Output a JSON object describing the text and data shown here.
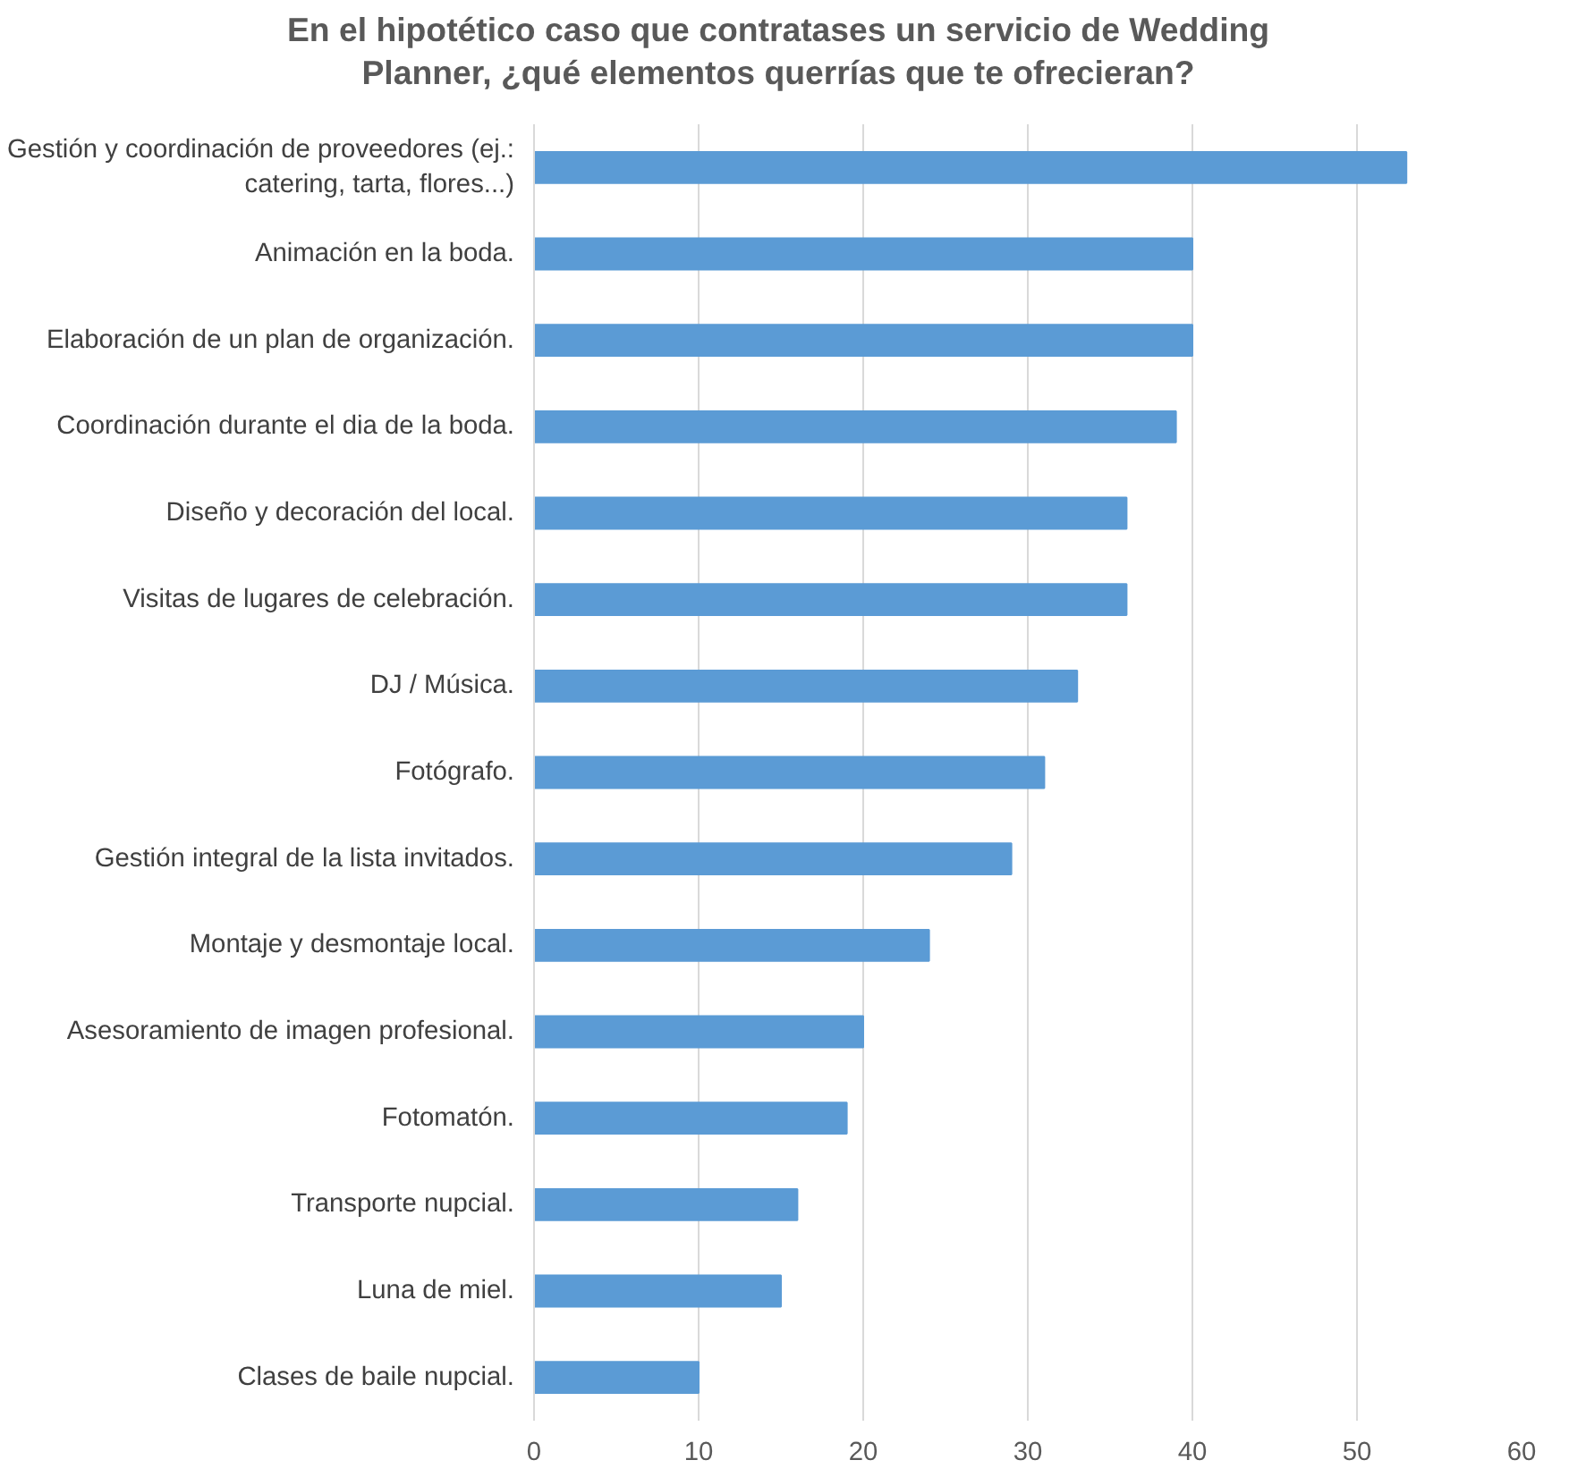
{
  "chart_data": {
    "type": "bar",
    "orientation": "horizontal",
    "title": "En el hipotético caso que contratases un servicio de Wedding Planner, ¿qué elementos querrías que te ofrecieran?",
    "categories": [
      "Gestión y coordinación de proveedores (ej.: catering, tarta, flores...)",
      "Animación en la boda.",
      "Elaboración de un plan de organización.",
      "Coordinación durante el dia de la boda.",
      "Diseño y decoración del local.",
      "Visitas de lugares de celebración.",
      "DJ / Música.",
      "Fotógrafo.",
      "Gestión integral de la lista invitados.",
      "Montaje y desmontaje local.",
      "Asesoramiento de imagen profesional.",
      "Fotomatón.",
      "Transporte nupcial.",
      "Luna de miel.",
      "Clases de baile nupcial."
    ],
    "values": [
      53,
      40,
      40,
      39,
      36,
      36,
      33,
      31,
      29,
      24,
      20,
      19,
      16,
      15,
      10
    ],
    "color": "#5b9bd5",
    "xlim": [
      0,
      60
    ],
    "xticks": [
      0,
      10,
      20,
      30,
      40,
      50,
      60
    ],
    "grid": "x"
  }
}
